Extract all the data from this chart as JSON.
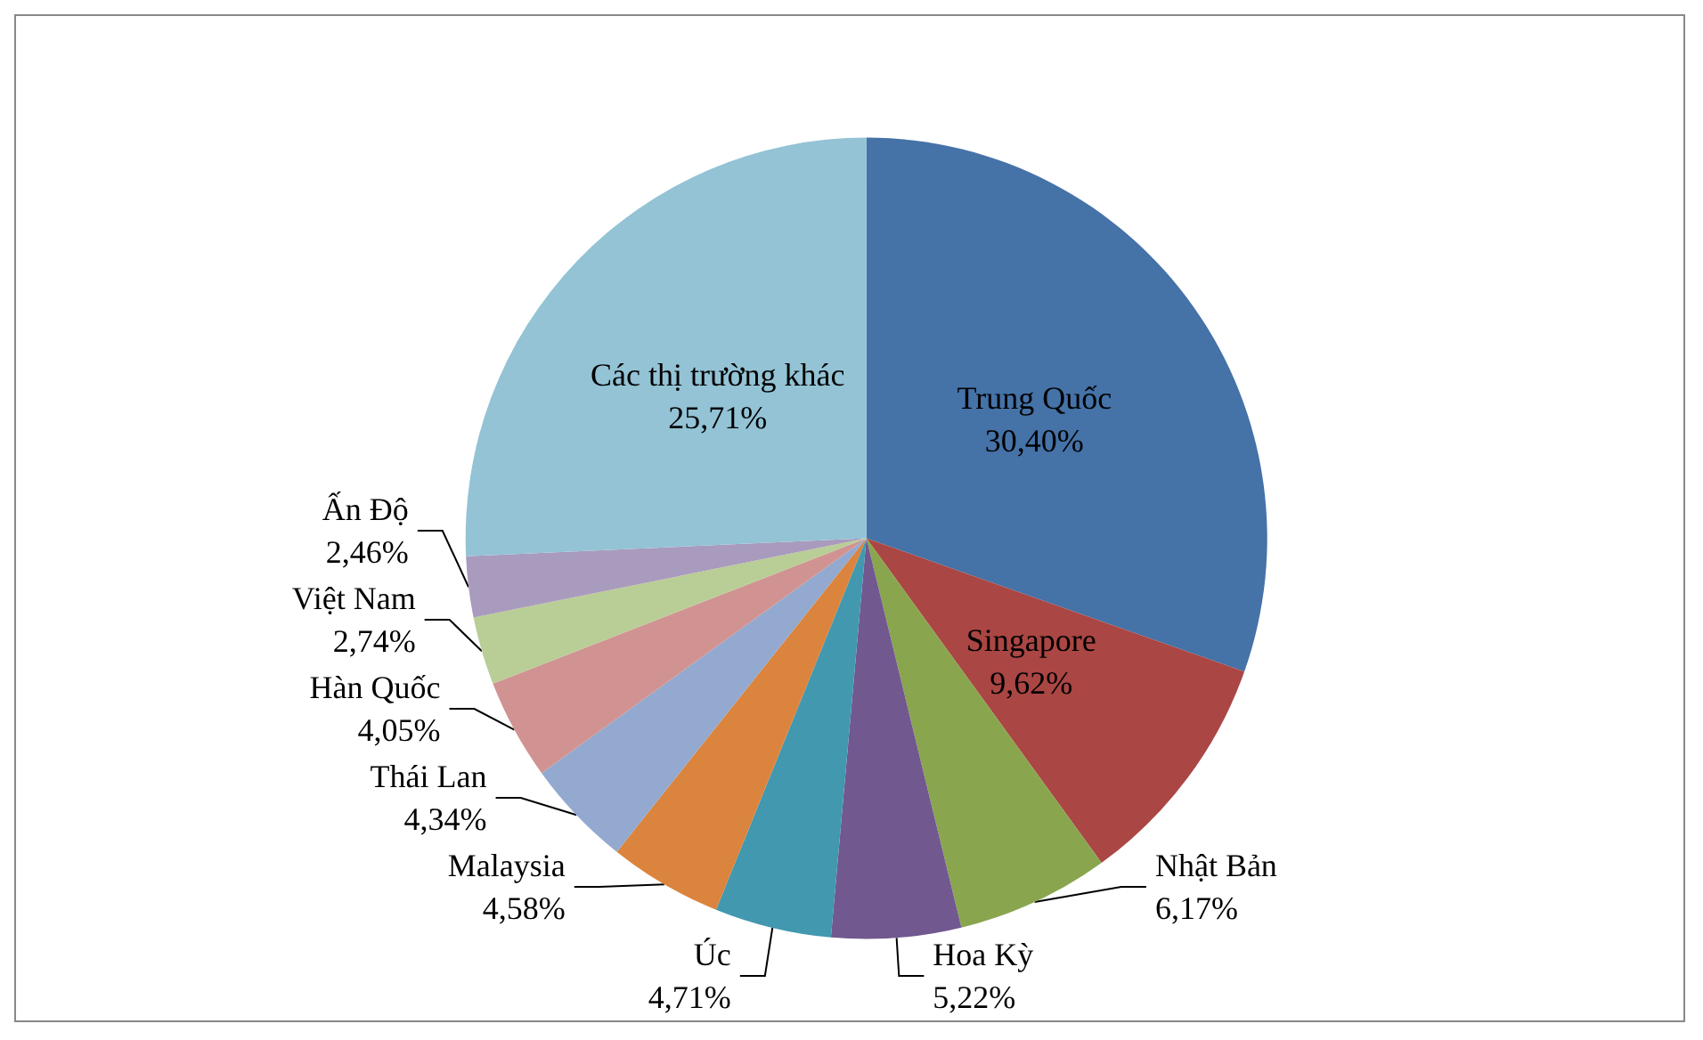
{
  "chart_data": {
    "type": "pie",
    "categories": [
      "Trung Quốc",
      "Singapore",
      "Nhật Bản",
      "Hoa Kỳ",
      "Úc",
      "Malaysia",
      "Thái Lan",
      "Hàn Quốc",
      "Việt Nam",
      "Ấn Độ",
      "Các thị trường khác"
    ],
    "values": [
      30.4,
      9.62,
      6.17,
      5.22,
      4.71,
      4.58,
      4.34,
      4.05,
      2.74,
      2.46,
      25.71
    ],
    "value_labels": [
      "30,40%",
      "9,62%",
      "6,17%",
      "5,22%",
      "4,71%",
      "4,58%",
      "4,34%",
      "4,05%",
      "2,74%",
      "2,46%",
      "25,71%"
    ],
    "colors": [
      "#4572a7",
      "#aa4643",
      "#89a54e",
      "#71588f",
      "#4198af",
      "#db843d",
      "#93a9cf",
      "#d19392",
      "#b9cd96",
      "#a99bbd",
      "#93c3d5"
    ],
    "legend": false
  }
}
